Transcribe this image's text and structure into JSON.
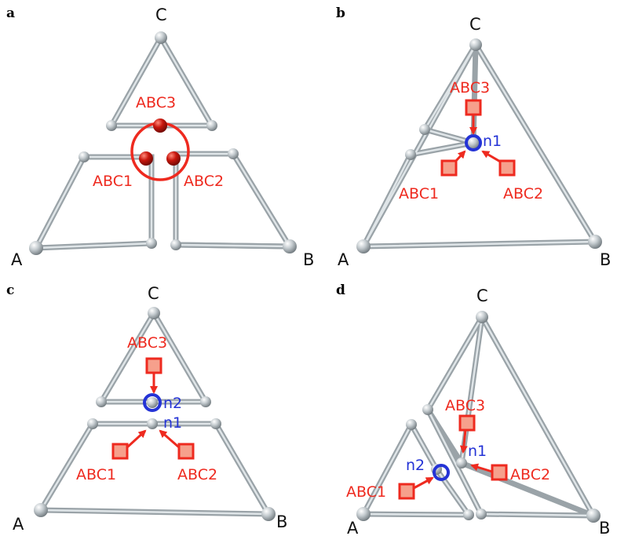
{
  "panels": [
    {
      "letter": "a",
      "vertex_labels": {
        "a": "A",
        "b": "B",
        "c": "C"
      },
      "red_labels": [
        "ABC3",
        "ABC1",
        "ABC2"
      ],
      "blue_labels": []
    },
    {
      "letter": "b",
      "vertex_labels": {
        "a": "A",
        "b": "B",
        "c": "C"
      },
      "red_labels": [
        "ABC3",
        "ABC1",
        "ABC2"
      ],
      "blue_labels": [
        "n1"
      ]
    },
    {
      "letter": "c",
      "vertex_labels": {
        "a": "A",
        "b": "B",
        "c": "C"
      },
      "red_labels": [
        "ABC3",
        "ABC1",
        "ABC2"
      ],
      "blue_labels": [
        "n2",
        "n1"
      ]
    },
    {
      "letter": "d",
      "vertex_labels": {
        "a": "A",
        "b": "B",
        "c": "C"
      },
      "red_labels": [
        "ABC3",
        "ABC1",
        "ABC2"
      ],
      "blue_labels": [
        "n2",
        "n1"
      ]
    }
  ],
  "colors": {
    "edge": "#9aa3a8",
    "node": "#c4cbcf",
    "label_red": "#ee2a1f",
    "label_blue": "#2433d6",
    "square_fill": "#f6a08c",
    "red_sphere": "#b3140c"
  }
}
